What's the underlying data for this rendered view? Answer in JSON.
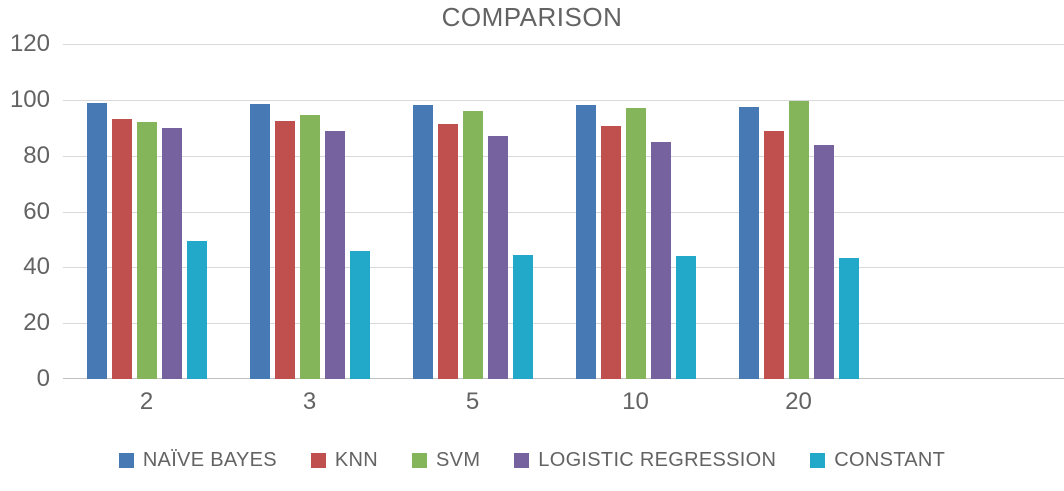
{
  "chart_data": {
    "type": "bar",
    "title": "COMPARISON",
    "categories": [
      "2",
      "3",
      "5",
      "10",
      "20"
    ],
    "series": [
      {
        "name": "NAÏVE BAYES",
        "color": "#4779b4",
        "values": [
          99,
          98.5,
          98,
          98,
          97.5
        ]
      },
      {
        "name": "KNN",
        "color": "#c0504d",
        "values": [
          93,
          92.5,
          91.5,
          90.5,
          89
        ]
      },
      {
        "name": "SVM",
        "color": "#84b55a",
        "values": [
          92,
          94.5,
          96,
          97,
          99.5
        ]
      },
      {
        "name": "LOGISTIC REGRESSION",
        "color": "#76629e",
        "values": [
          90,
          89,
          87,
          85,
          84
        ]
      },
      {
        "name": "CONSTANT",
        "color": "#22a8c8",
        "values": [
          49.5,
          46,
          44.5,
          44,
          43.5
        ]
      }
    ],
    "y_ticks": [
      0,
      20,
      40,
      60,
      80,
      100,
      120
    ],
    "ylim": [
      0,
      120
    ],
    "xlabel": "",
    "ylabel": "",
    "grid": true,
    "legend_position": "bottom",
    "text_color": "#636363",
    "gridline_color": "#d9d9d9",
    "axis_line_color": "#c0c0c0",
    "background_color": "#ffffff"
  }
}
